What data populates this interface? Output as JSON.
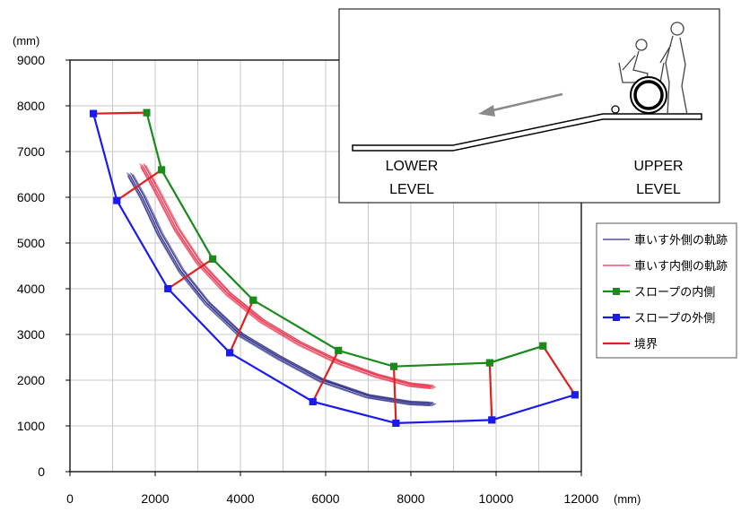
{
  "chart_data": {
    "type": "line",
    "xlim": [
      0,
      12000
    ],
    "ylim": [
      0,
      9000
    ],
    "x_ticks": [
      0,
      2000,
      4000,
      6000,
      8000,
      10000,
      12000
    ],
    "y_ticks": [
      0,
      1000,
      2000,
      3000,
      4000,
      5000,
      6000,
      7000,
      8000,
      9000
    ],
    "x_unit": "(mm)",
    "y_unit": "(mm)",
    "grid": true,
    "legend_position": "right",
    "series": [
      {
        "name": "車いす外側の軌跡",
        "color": "#2e2e8a",
        "kind": "trajectory_bundle",
        "x": [
          1400,
          1700,
          2100,
          2600,
          3200,
          4000,
          4900,
          5900,
          7000,
          8000,
          8500
        ],
        "y": [
          6500,
          6000,
          5200,
          4400,
          3700,
          3000,
          2500,
          2000,
          1650,
          1500,
          1480
        ]
      },
      {
        "name": "車いす内側の軌跡",
        "color": "#e8344e",
        "kind": "trajectory_bundle",
        "x": [
          1700,
          2000,
          2500,
          3000,
          3700,
          4500,
          5400,
          6300,
          7200,
          8000,
          8500
        ],
        "y": [
          6700,
          6200,
          5300,
          4600,
          3900,
          3300,
          2800,
          2400,
          2100,
          1900,
          1850
        ]
      },
      {
        "name": "スロープの内側",
        "color": "#1a8a1a",
        "kind": "polyline_markers",
        "x": [
          1800,
          2150,
          3350,
          4300,
          6300,
          7600,
          9850,
          11100
        ],
        "y": [
          7850,
          6600,
          4650,
          3750,
          2650,
          2300,
          2380,
          2750
        ]
      },
      {
        "name": "スロープの外側",
        "color": "#1a1aee",
        "kind": "polyline_markers",
        "x": [
          550,
          1100,
          2300,
          3750,
          5700,
          7650,
          9900,
          11850
        ],
        "y": [
          7830,
          5930,
          4000,
          2600,
          1530,
          1060,
          1130,
          1680
        ]
      },
      {
        "name": "境界",
        "color": "#e02020",
        "kind": "segments",
        "segments": [
          [
            [
              550,
              7830
            ],
            [
              1800,
              7850
            ]
          ],
          [
            [
              1100,
              5930
            ],
            [
              2150,
              6600
            ]
          ],
          [
            [
              2300,
              4000
            ],
            [
              3350,
              4650
            ]
          ],
          [
            [
              3750,
              2600
            ],
            [
              4300,
              3750
            ]
          ],
          [
            [
              5700,
              1530
            ],
            [
              6300,
              2650
            ]
          ],
          [
            [
              7650,
              1060
            ],
            [
              7600,
              2300
            ]
          ],
          [
            [
              9900,
              1130
            ],
            [
              9850,
              2380
            ]
          ],
          [
            [
              11850,
              1680
            ],
            [
              11100,
              2750
            ]
          ]
        ]
      }
    ]
  },
  "inset": {
    "lower_level": [
      "LOWER",
      "LEVEL"
    ],
    "upper_level": [
      "UPPER",
      "LEVEL"
    ],
    "arrow_icon": "arrow-down-slope-icon",
    "wheelchair_icon": "wheelchair-with-attendant-icon"
  }
}
